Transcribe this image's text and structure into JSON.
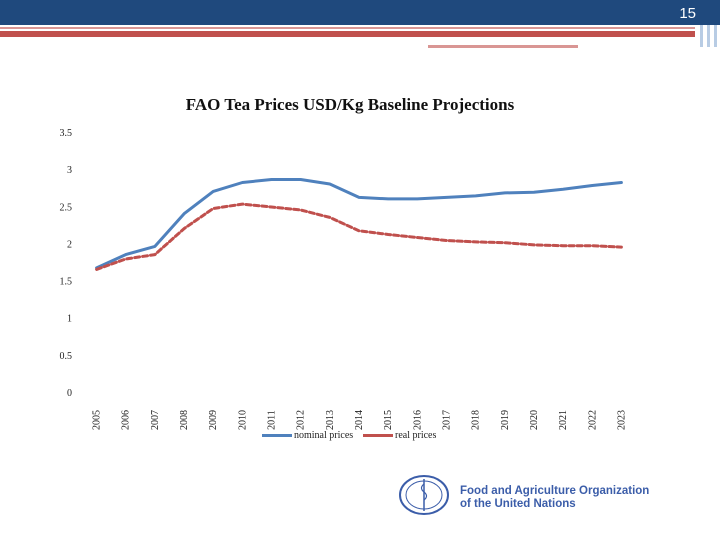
{
  "header": {
    "slide_number": "15"
  },
  "chart_data": {
    "type": "line",
    "title": "FAO Tea Prices USD/Kg Baseline Projections",
    "xlabel": "",
    "ylabel": "",
    "categories": [
      "2005",
      "2006",
      "2007",
      "2008",
      "2009",
      "2010",
      "2011",
      "2012",
      "2013",
      "2014",
      "2015",
      "2016",
      "2017",
      "2018",
      "2019",
      "2020",
      "2021",
      "2022",
      "2023"
    ],
    "yticks": [
      "0",
      "0.5",
      "1",
      "1.5",
      "2",
      "2.5",
      "3",
      "3.5"
    ],
    "ylim": [
      0,
      3.5
    ],
    "grid": false,
    "legend_position": "bottom",
    "series": [
      {
        "name": "nominal prices",
        "color": "#4f81bd",
        "dash": false,
        "values": [
          1.67,
          1.85,
          1.96,
          2.4,
          2.7,
          2.82,
          2.86,
          2.86,
          2.8,
          2.62,
          2.6,
          2.6,
          2.62,
          2.64,
          2.68,
          2.69,
          2.73,
          2.78,
          2.82
        ]
      },
      {
        "name": "real prices",
        "color": "#c0504d",
        "dash": true,
        "values": [
          1.65,
          1.79,
          1.85,
          2.2,
          2.47,
          2.53,
          2.49,
          2.45,
          2.35,
          2.17,
          2.12,
          2.08,
          2.04,
          2.02,
          2.01,
          1.98,
          1.97,
          1.97,
          1.95
        ]
      }
    ]
  },
  "logo": {
    "org_line1": "Food and Agriculture Organization",
    "org_line2": "of the United Nations",
    "emblem_text": "FAO"
  }
}
